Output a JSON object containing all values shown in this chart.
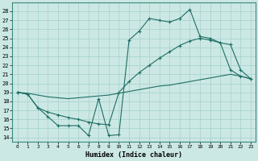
{
  "xlabel": "Humidex (Indice chaleur)",
  "bg_color": "#cce8e4",
  "grid_color": "#aad4cf",
  "line_color": "#1e6e65",
  "xlim": [
    -0.5,
    23.5
  ],
  "ylim": [
    13.5,
    29.0
  ],
  "xticks": [
    0,
    1,
    2,
    3,
    4,
    5,
    6,
    7,
    8,
    9,
    10,
    11,
    12,
    13,
    14,
    15,
    16,
    17,
    18,
    19,
    20,
    21,
    22,
    23
  ],
  "yticks": [
    14,
    15,
    16,
    17,
    18,
    19,
    20,
    21,
    22,
    23,
    24,
    25,
    26,
    27,
    28
  ],
  "curve1_x": [
    0,
    1,
    2,
    3,
    4,
    5,
    6,
    7,
    8,
    9,
    10,
    11,
    12,
    13,
    14,
    15,
    16,
    17,
    18,
    19,
    20,
    21,
    22,
    23
  ],
  "curve1_y": [
    19.0,
    18.8,
    17.3,
    16.3,
    15.3,
    15.3,
    15.3,
    14.2,
    18.3,
    14.2,
    14.3,
    24.8,
    25.8,
    27.2,
    27.0,
    26.8,
    27.2,
    28.2,
    25.2,
    25.0,
    24.5,
    24.3,
    21.5,
    20.5
  ],
  "curve2_x": [
    0,
    1,
    2,
    3,
    4,
    5,
    6,
    7,
    8,
    9,
    10,
    11,
    12,
    13,
    14,
    15,
    16,
    17,
    18,
    19,
    20,
    21,
    22,
    23
  ],
  "curve2_y": [
    19.0,
    18.8,
    17.3,
    16.8,
    16.5,
    16.2,
    16.0,
    15.7,
    15.5,
    15.4,
    19.0,
    20.2,
    21.2,
    22.0,
    22.8,
    23.5,
    24.2,
    24.7,
    25.0,
    24.8,
    24.5,
    21.5,
    20.8,
    20.5
  ],
  "curve3_x": [
    0,
    1,
    2,
    3,
    4,
    5,
    6,
    7,
    8,
    9,
    10,
    11,
    12,
    13,
    14,
    15,
    16,
    17,
    18,
    19,
    20,
    21,
    22,
    23
  ],
  "curve3_y": [
    19.0,
    18.9,
    18.7,
    18.5,
    18.4,
    18.3,
    18.4,
    18.5,
    18.6,
    18.7,
    18.9,
    19.1,
    19.3,
    19.5,
    19.7,
    19.8,
    20.0,
    20.2,
    20.4,
    20.6,
    20.8,
    21.0,
    20.8,
    20.5
  ]
}
